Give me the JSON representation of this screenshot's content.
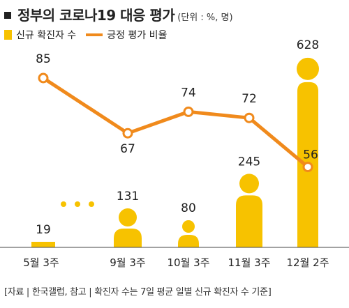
{
  "title": {
    "main": "정부의 코로나19 대응 평가",
    "unit": "(단위 : %, 명)"
  },
  "legend": {
    "bar_label": "신규 확진자 수",
    "line_label": "긍정 평가 비율"
  },
  "source_note": "[자료 | 한국갤럽, 참고 | 확진자 수는 7일 평균 일별 신규 확진자 수 기준]",
  "colors": {
    "bar": "#f7c200",
    "line": "#f08a1c",
    "marker_fill": "#ffffff"
  },
  "chart_data": {
    "type": "bar",
    "categories": [
      "5월 3주",
      "9월 3주",
      "10월 3주",
      "11월 3주",
      "12월 2주"
    ],
    "series": [
      {
        "name": "신규 확진자 수",
        "type": "bar",
        "values": [
          19,
          131,
          80,
          245,
          628
        ],
        "labels": [
          "19",
          "131",
          "80",
          "245",
          "628"
        ]
      },
      {
        "name": "긍정 평가 비율",
        "type": "line",
        "values": [
          85,
          67,
          74,
          72,
          56
        ],
        "labels": [
          "85",
          "67",
          "74",
          "72",
          "56"
        ]
      }
    ],
    "gap_marker": "• • •",
    "legend_position": "top-left",
    "grid": false
  }
}
